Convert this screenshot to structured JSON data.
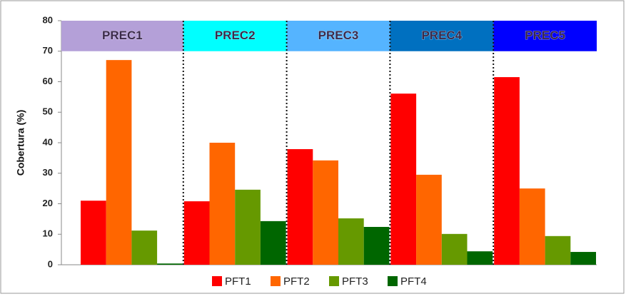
{
  "chart_data": {
    "type": "bar",
    "y_label": "Cobertura (%)",
    "categories": [
      "PREC1",
      "PREC2",
      "PREC3",
      "PREC4",
      "PREC5"
    ],
    "category_colors": [
      "#b4a0d8",
      "#00ffff",
      "#55b4ff",
      "#0070c0",
      "#0000ff"
    ],
    "series": [
      {
        "name": "PFT1",
        "color": "#ff0000",
        "values": [
          21.0,
          20.8,
          37.9,
          56.1,
          61.5
        ]
      },
      {
        "name": "PFT2",
        "color": "#ff6600",
        "values": [
          67.1,
          40.0,
          34.2,
          29.5,
          25.0
        ]
      },
      {
        "name": "PFT3",
        "color": "#669900",
        "values": [
          11.2,
          24.6,
          15.2,
          10.1,
          9.4
        ]
      },
      {
        "name": "PFT4",
        "color": "#006600",
        "values": [
          0.4,
          14.3,
          12.4,
          4.4,
          4.2
        ]
      }
    ],
    "ylim": [
      0,
      80
    ],
    "yticks": [
      0,
      10,
      20,
      30,
      40,
      50,
      60,
      70,
      80
    ],
    "grid": false,
    "legend": "bottom"
  }
}
